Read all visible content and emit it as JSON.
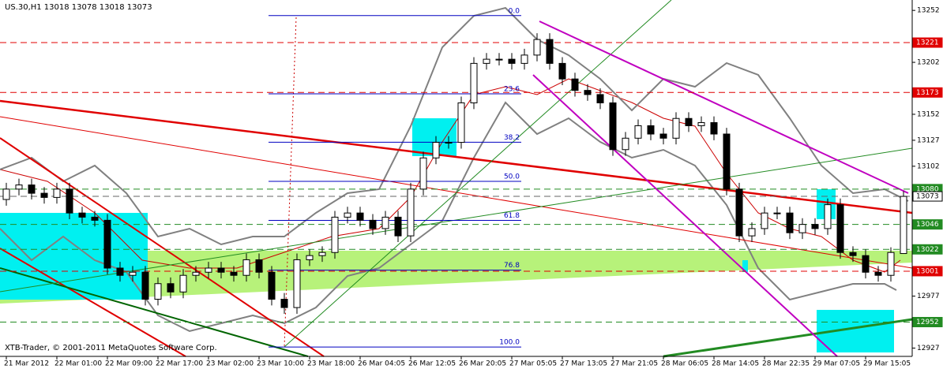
{
  "chart_data": {
    "type": "candlestick",
    "title": "US.30,H1  13018 13078 13018 13073",
    "footer": "XTB-Trader, © 2001-2011 MetaQuotes Software Corp.",
    "categories": [
      "21 Mar 2012",
      null,
      null,
      null,
      "22 Mar 01:00",
      null,
      null,
      null,
      "22 Mar 09:00",
      null,
      null,
      null,
      "22 Mar 17:00",
      null,
      null,
      null,
      "23 Mar 02:00",
      null,
      null,
      null,
      "23 Mar 10:00",
      null,
      null,
      null,
      "23 Mar 18:00",
      null,
      null,
      null,
      "26 Mar 04:05",
      null,
      null,
      null,
      "26 Mar 12:05",
      null,
      null,
      null,
      "26 Mar 20:05",
      null,
      null,
      null,
      "27 Mar 05:05",
      null,
      null,
      null,
      "27 Mar 13:05",
      null,
      null,
      null,
      "27 Mar 21:05",
      null,
      null,
      null,
      "28 Mar 06:05",
      null,
      null,
      null,
      "28 Mar 14:05",
      null,
      null,
      null,
      "28 Mar 22:35",
      null,
      null,
      null,
      "29 Mar 07:05",
      null,
      null,
      null,
      "29 Mar 15:05",
      null,
      null,
      null
    ],
    "open": [
      13070,
      13080,
      13084,
      13076,
      13072,
      13080,
      13057,
      13053,
      13050,
      13004,
      12997,
      13000,
      12974,
      12989,
      12981,
      12997,
      13000,
      13004,
      13000,
      12997,
      13012,
      13000,
      12974,
      12966,
      13012,
      13016,
      13019,
      13053,
      13057,
      13050,
      13042,
      13053,
      13035,
      13080,
      13110,
      13125,
      13125,
      13163,
      13201,
      13205,
      13205,
      13201,
      13209,
      13224,
      13201,
      13186,
      13175,
      13171,
      13163,
      13118,
      13129,
      13141,
      13133,
      13129,
      13148,
      13141,
      13144,
      13133,
      13080,
      13035,
      13042,
      13057,
      13057,
      13038,
      13046,
      13042,
      13065,
      13019,
      13016,
      13000,
      12997,
      13018
    ],
    "high": [
      13086,
      13090,
      13090,
      13082,
      13086,
      13086,
      13063,
      13059,
      13056,
      13010,
      13006,
      13006,
      12995,
      12995,
      13003,
      13006,
      13010,
      13010,
      13006,
      13018,
      13018,
      13006,
      12980,
      13018,
      13022,
      13025,
      13059,
      13063,
      13063,
      13056,
      13059,
      13059,
      13086,
      13116,
      13131,
      13131,
      13169,
      13207,
      13211,
      13211,
      13211,
      13215,
      13230,
      13230,
      13207,
      13192,
      13181,
      13177,
      13169,
      13135,
      13147,
      13147,
      13139,
      13154,
      13154,
      13150,
      13150,
      13139,
      13086,
      13048,
      13063,
      13063,
      13063,
      13052,
      13052,
      13071,
      13071,
      13025,
      13022,
      13006,
      13024,
      13078
    ],
    "low": [
      13064,
      13074,
      13070,
      13066,
      13066,
      13051,
      13047,
      13044,
      12998,
      12991,
      12991,
      12968,
      12968,
      12975,
      12975,
      12991,
      12994,
      12994,
      12991,
      12991,
      12994,
      12968,
      12960,
      12960,
      13006,
      13010,
      13013,
      13047,
      13044,
      13036,
      13036,
      13029,
      13029,
      13074,
      13104,
      13119,
      13119,
      13157,
      13195,
      13199,
      13195,
      13195,
      13203,
      13195,
      13180,
      13169,
      13165,
      13157,
      13112,
      13112,
      13123,
      13127,
      13123,
      13123,
      13135,
      13135,
      13127,
      13074,
      13029,
      13029,
      13036,
      13051,
      13032,
      13032,
      13036,
      13036,
      13013,
      13010,
      12994,
      12991,
      12991,
      13018
    ],
    "close": [
      13080,
      13084,
      13076,
      13072,
      13080,
      13057,
      13053,
      13050,
      13004,
      12997,
      13000,
      12974,
      12989,
      12981,
      12997,
      13000,
      13004,
      13000,
      12997,
      13012,
      13000,
      12974,
      12966,
      13012,
      13016,
      13019,
      13053,
      13057,
      13050,
      13042,
      13053,
      13035,
      13080,
      13110,
      13125,
      13125,
      13163,
      13201,
      13205,
      13205,
      13201,
      13209,
      13224,
      13201,
      13186,
      13175,
      13171,
      13163,
      13118,
      13129,
      13141,
      13133,
      13129,
      13148,
      13141,
      13144,
      13133,
      13080,
      13035,
      13042,
      13057,
      13057,
      13038,
      13046,
      13042,
      13065,
      13019,
      13016,
      13000,
      12997,
      13019,
      13073
    ],
    "ylim": [
      12919,
      13262
    ],
    "yticks": [
      13252,
      13202,
      13152,
      13127,
      13102,
      12977,
      12927
    ],
    "levels": [
      {
        "value": 13221,
        "color": "#e00000"
      },
      {
        "value": 13173,
        "color": "#e00000"
      },
      {
        "value": 13080,
        "color": "#228b22"
      },
      {
        "value": 13073,
        "color": "#ffffff"
      },
      {
        "value": 13046,
        "color": "#228b22"
      },
      {
        "value": 13022,
        "color": "#228b22"
      },
      {
        "value": 13001,
        "color": "#e00000"
      },
      {
        "value": 12952,
        "color": "#228b22"
      }
    ],
    "fibonacci": {
      "range": [
        13247,
        12928
      ],
      "levels": [
        {
          "value": 0,
          "label": "0.0"
        },
        {
          "value": 23.6,
          "label": "23.6"
        },
        {
          "value": 38.2,
          "label": "38.2"
        },
        {
          "value": 50,
          "label": "50.0"
        },
        {
          "value": 61.8,
          "label": "61.8"
        },
        {
          "value": 76.8,
          "label": "76.8"
        },
        {
          "value": 100,
          "label": "100.0"
        }
      ]
    }
  }
}
